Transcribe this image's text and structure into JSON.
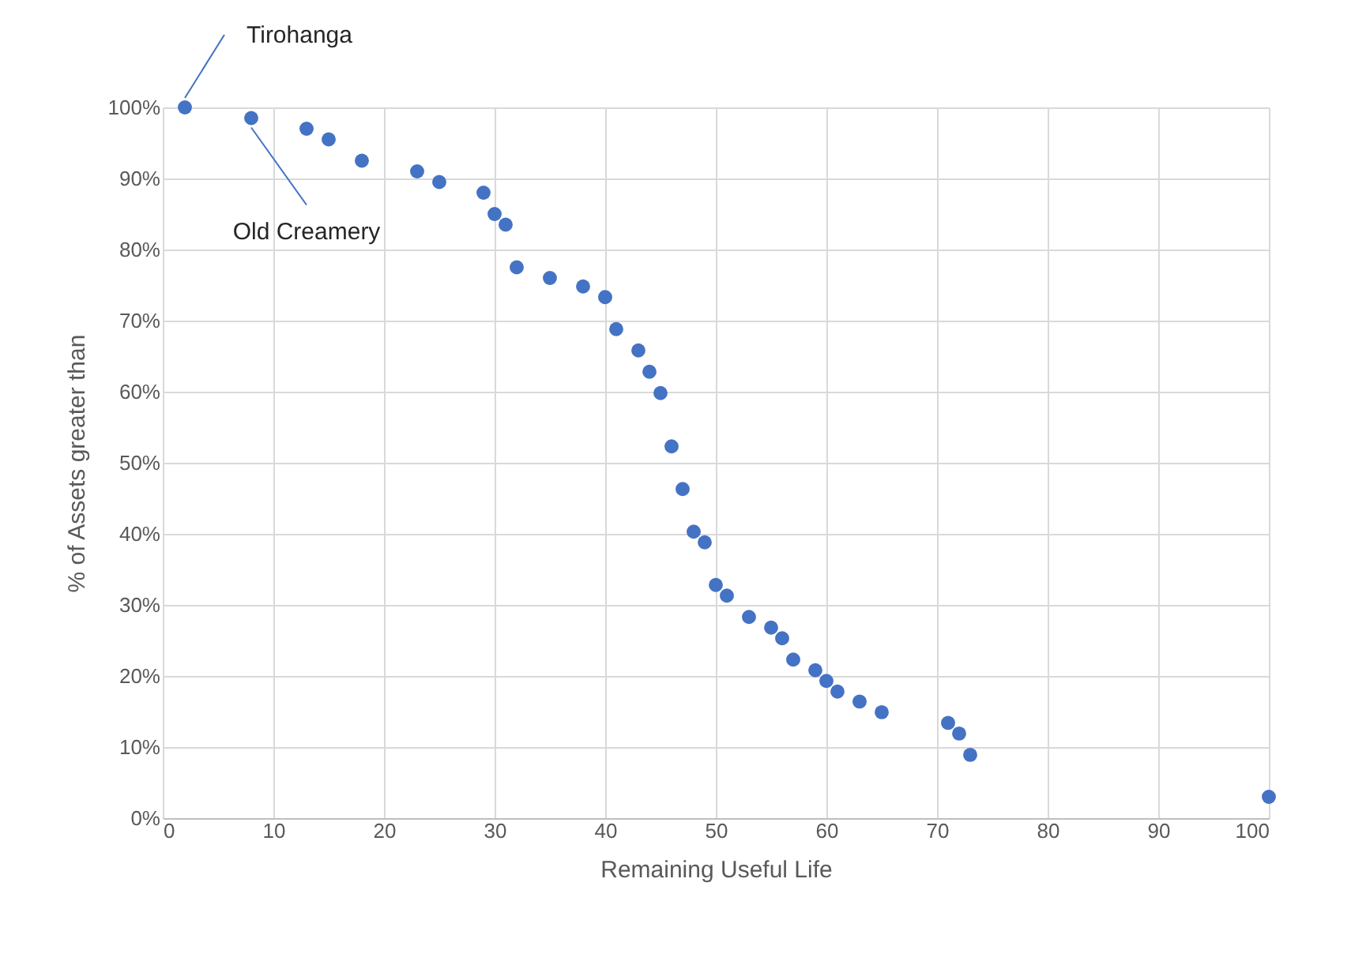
{
  "chart_data": {
    "type": "scatter",
    "xlabel": "Remaining  Useful Life",
    "ylabel": "% of Assets greater than",
    "x": [
      2,
      8,
      13,
      15,
      18,
      23,
      25,
      29,
      30,
      31,
      32,
      35,
      38,
      40,
      41,
      43,
      44,
      45,
      46,
      47,
      48,
      49,
      50,
      51,
      53,
      55,
      56,
      57,
      59,
      60,
      61,
      63,
      65,
      71,
      72,
      73,
      100
    ],
    "series": [
      {
        "color": "#4472c4",
        "values": [
          100,
          98.5,
          97,
          95.5,
          92.5,
          91,
          89.5,
          88,
          85,
          83.5,
          77.5,
          76,
          74.8,
          73.3,
          68.8,
          65.8,
          62.8,
          59.8,
          52.3,
          46.3,
          40.3,
          38.8,
          32.8,
          31.3,
          28.3,
          26.8,
          25.3,
          22.3,
          20.8,
          19.3,
          17.8,
          16.4,
          14.9,
          13.4,
          11.9,
          8.9,
          3
        ]
      }
    ],
    "xlim": [
      0,
      100
    ],
    "xticks": [
      0,
      10,
      20,
      30,
      40,
      50,
      60,
      70,
      80,
      90,
      100
    ],
    "ylim": [
      0,
      100
    ],
    "yticks": [
      {
        "value": 0,
        "label": "0%"
      },
      {
        "value": 10,
        "label": "10%"
      },
      {
        "value": 20,
        "label": "20%"
      },
      {
        "value": 30,
        "label": "30%"
      },
      {
        "value": 40,
        "label": "40%"
      },
      {
        "value": 50,
        "label": "50%"
      },
      {
        "value": 60,
        "label": "60%"
      },
      {
        "value": 70,
        "label": "70%"
      },
      {
        "value": 80,
        "label": "80%"
      },
      {
        "value": 90,
        "label": "90%"
      },
      {
        "value": 100,
        "label": "100%"
      }
    ],
    "grid": true,
    "marker": "circle",
    "legend": false,
    "annotations": [
      {
        "text": "Tirohanga",
        "x": 2,
        "y": 100
      },
      {
        "text": "Old Creamery",
        "x": 8,
        "y": 98.5
      }
    ]
  }
}
